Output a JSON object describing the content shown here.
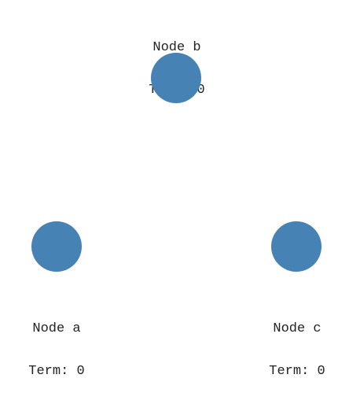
{
  "colors": {
    "node_fill": "#4682b4",
    "text": "#222222"
  },
  "nodes": [
    {
      "id": "a",
      "name": "Node a",
      "term": "Term: 0"
    },
    {
      "id": "b",
      "name": "Node b",
      "term": "Term: 0"
    },
    {
      "id": "c",
      "name": "Node c",
      "term": "Term: 0"
    }
  ]
}
